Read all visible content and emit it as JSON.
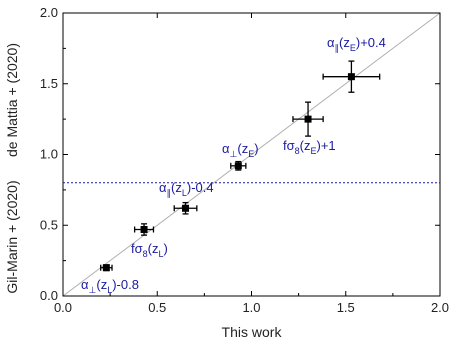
{
  "chart_data": {
    "type": "scatter",
    "title": "",
    "xlabel": "This work",
    "ylabel_upper": "de Mattia + (2020)",
    "ylabel_lower": "Gil-Marin + (2020)",
    "xlim": [
      0.0,
      2.0
    ],
    "ylim": [
      0.0,
      2.0
    ],
    "xticks": [
      "0.0",
      "0.5",
      "1.0",
      "1.5",
      "2.0"
    ],
    "yticks": [
      "0.0",
      "0.5",
      "1.0",
      "1.5",
      "2.0"
    ],
    "grid": false,
    "identity_line": true,
    "divider_y": 0.8,
    "colors": {
      "points": "#000000",
      "annotation": "#1a1aa0",
      "identity": "#b0b0b0",
      "divider": "#1a1aa0"
    },
    "points": [
      {
        "x": 0.23,
        "y": 0.2,
        "xerr": 0.03,
        "yerr": 0.02,
        "label": "α⊥(zL)-0.8"
      },
      {
        "x": 0.43,
        "y": 0.47,
        "xerr": 0.05,
        "yerr": 0.04,
        "label": "fσ8(zL)"
      },
      {
        "x": 0.65,
        "y": 0.62,
        "xerr": 0.06,
        "yerr": 0.04,
        "label": "α∥(zL)-0.4"
      },
      {
        "x": 0.93,
        "y": 0.92,
        "xerr": 0.04,
        "yerr": 0.03,
        "label": "α⊥(zE)"
      },
      {
        "x": 1.3,
        "y": 1.25,
        "xerr": 0.08,
        "yerr": 0.12,
        "label": "fσ8(zE)+1"
      },
      {
        "x": 1.53,
        "y": 1.55,
        "xerr": 0.15,
        "yerr": 0.11,
        "label": "α∥(zE)+0.4"
      }
    ],
    "annotations": [
      {
        "main": "α",
        "sub": "⊥",
        "mid": "(z",
        "sub2": "L",
        "end": ")-0.8"
      },
      {
        "main": "fσ",
        "sub": "8",
        "mid": "(z",
        "sub2": "L",
        "end": ")"
      },
      {
        "main": "α",
        "sub": "∥",
        "mid": "(z",
        "sub2": "L",
        "end": ")-0.4"
      },
      {
        "main": "α",
        "sub": "⊥",
        "mid": "(z",
        "sub2": "E",
        "end": ")"
      },
      {
        "main": "fσ",
        "sub": "8",
        "mid": "(z",
        "sub2": "E",
        "end": ")+1"
      },
      {
        "main": "α",
        "sub": "∥",
        "mid": "(z",
        "sub2": "E",
        "end": ")+0.4"
      }
    ]
  }
}
